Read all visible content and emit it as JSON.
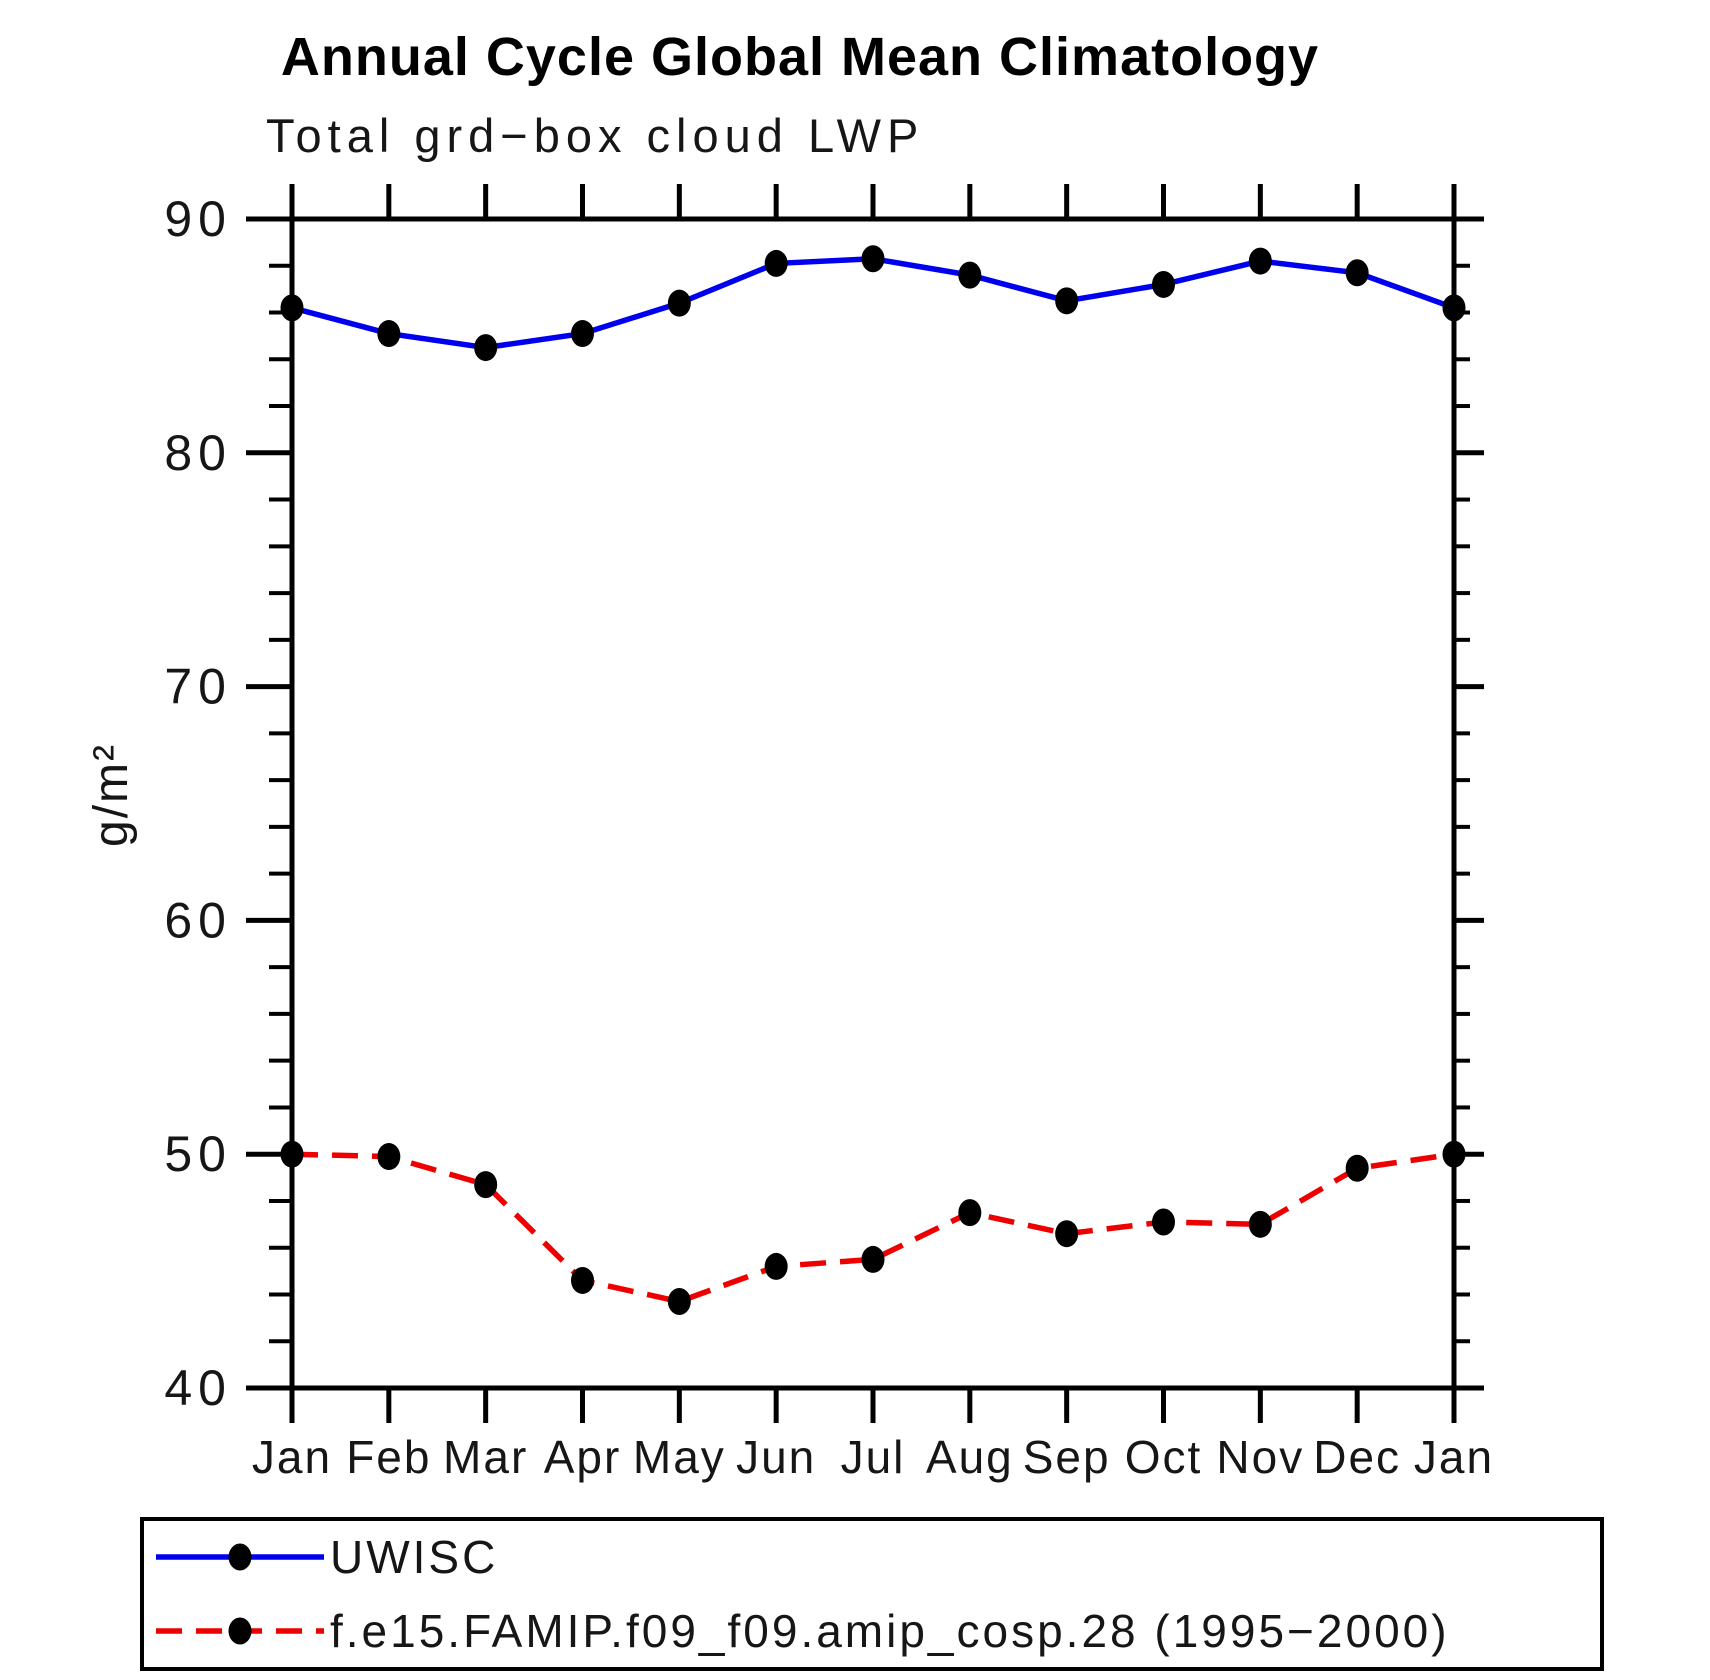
{
  "page_background": "#ffffff",
  "chart_data": {
    "type": "line",
    "title": "Annual Cycle Global Mean Climatology",
    "subtitle": "Total grd−box cloud LWP",
    "ylabel": "g/m²",
    "xlabel": "",
    "x_categories": [
      "Jan",
      "Feb",
      "Mar",
      "Apr",
      "May",
      "Jun",
      "Jul",
      "Aug",
      "Sep",
      "Oct",
      "Nov",
      "Dec",
      "Jan"
    ],
    "ylim": [
      40,
      90
    ],
    "ytick_major": [
      40,
      50,
      60,
      70,
      80,
      90
    ],
    "ytick_minor_step": 2,
    "grid": "off",
    "legend_position": "bottom-box",
    "axis_color": "#000000",
    "marker_color": "#000000",
    "series": [
      {
        "name": "UWISC",
        "color": "#0000ee",
        "line_style": "solid",
        "marker": "filled-circle",
        "values": [
          86.2,
          85.1,
          84.5,
          85.1,
          86.4,
          88.1,
          88.3,
          87.6,
          86.5,
          87.2,
          88.2,
          87.7,
          86.2
        ]
      },
      {
        "name": "f.e15.FAMIP.f09_f09.amip_cosp.28 (1995−2000)",
        "color": "#ee0000",
        "line_style": "dashed",
        "marker": "filled-circle",
        "values": [
          50.0,
          49.9,
          48.7,
          44.6,
          43.7,
          45.2,
          45.5,
          47.5,
          46.6,
          47.1,
          47.0,
          49.4,
          50.0
        ]
      }
    ]
  }
}
